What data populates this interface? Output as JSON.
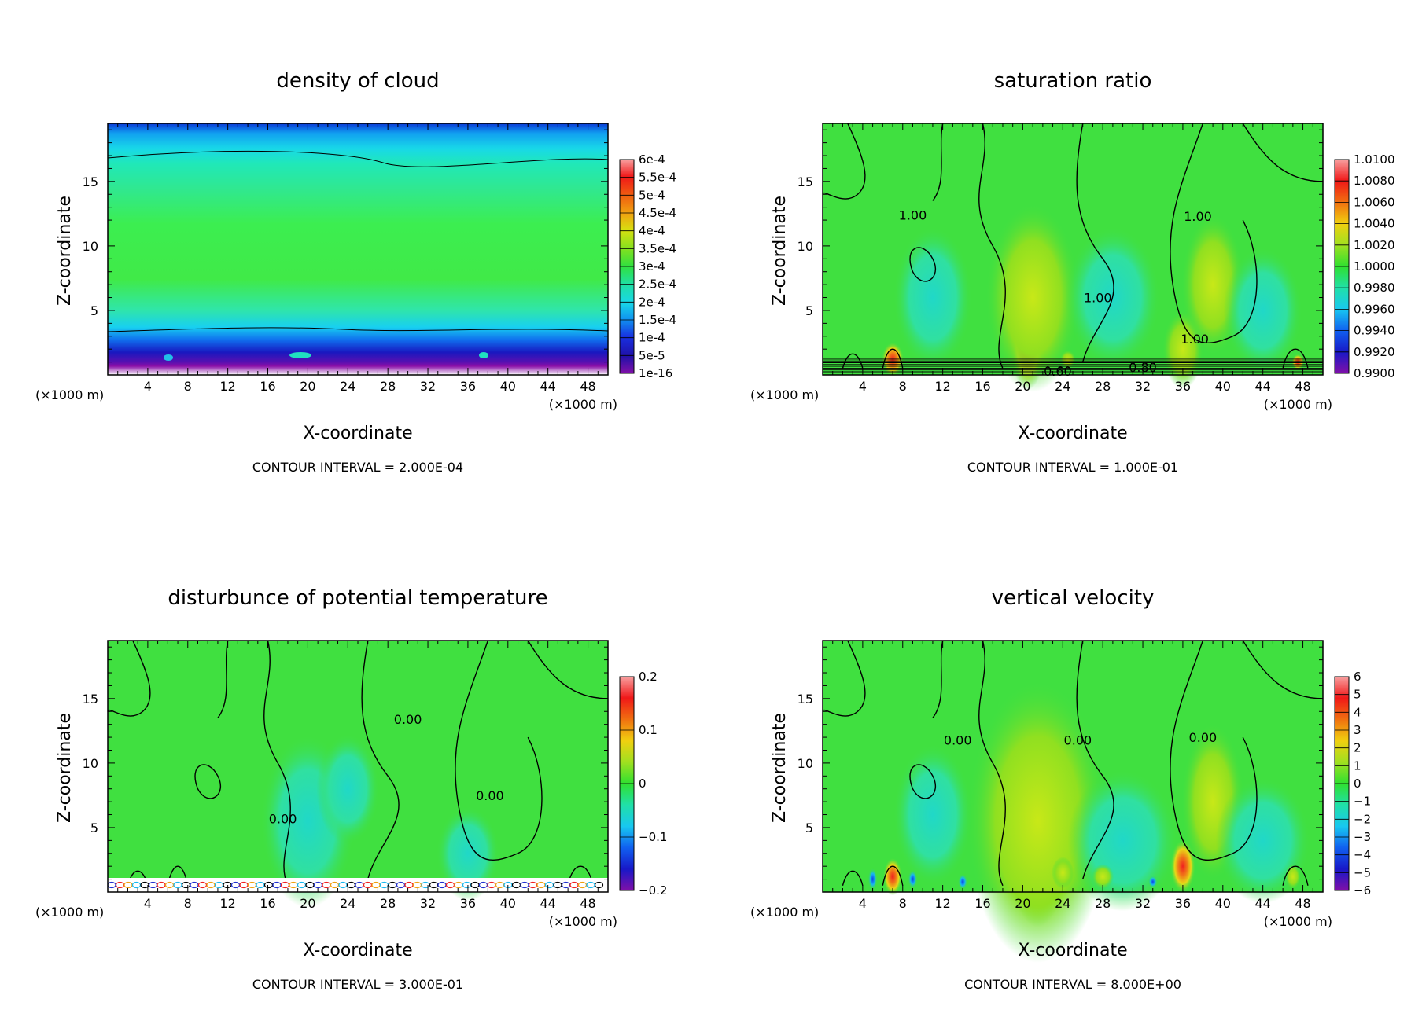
{
  "chart_data": [
    {
      "type": "heatmap",
      "title": "density of cloud",
      "xlabel": "X-coordinate",
      "ylabel": "Z-coordinate",
      "x_unit_left": "(×1000 m)",
      "x_unit_right": "(×1000 m)",
      "xlim": [
        0,
        50
      ],
      "ylim": [
        0,
        19.5
      ],
      "x_ticks": [
        4,
        8,
        12,
        16,
        20,
        24,
        28,
        32,
        36,
        40,
        44,
        48
      ],
      "y_ticks": [
        5,
        10,
        15
      ],
      "colorbar_labels": [
        "6e-4",
        "5.5e-4",
        "5e-4",
        "4.5e-4",
        "4e-4",
        "3.5e-4",
        "3e-4",
        "2.5e-4",
        "2e-4",
        "1.5e-4",
        "1e-4",
        "5e-5",
        "1e-16"
      ],
      "contour_labels": [],
      "footer": "CONTOUR INTERVAL = 2.000E-04"
    },
    {
      "type": "heatmap",
      "title": "saturation ratio",
      "xlabel": "X-coordinate",
      "ylabel": "Z-coordinate",
      "x_unit_left": "(×1000 m)",
      "x_unit_right": "(×1000 m)",
      "xlim": [
        0,
        50
      ],
      "ylim": [
        0,
        19.5
      ],
      "x_ticks": [
        4,
        8,
        12,
        16,
        20,
        24,
        28,
        32,
        36,
        40,
        44,
        48
      ],
      "y_ticks": [
        5,
        10,
        15
      ],
      "colorbar_labels": [
        "1.0100",
        "1.0080",
        "1.0060",
        "1.0040",
        "1.0020",
        "1.0000",
        "0.9980",
        "0.9960",
        "0.9940",
        "0.9920",
        "0.9900"
      ],
      "contour_labels": [
        {
          "text": "1.00",
          "x": 9,
          "z": 12.4
        },
        {
          "text": "1.00",
          "x": 37.5,
          "z": 12.3
        },
        {
          "text": "1.00",
          "x": 27.5,
          "z": 6.0
        },
        {
          "text": "1.00",
          "x": 37.2,
          "z": 2.8
        },
        {
          "text": "0.60",
          "x": 23.5,
          "z": 0.3
        },
        {
          "text": "0.80",
          "x": 32,
          "z": 0.6
        }
      ],
      "footer": "CONTOUR INTERVAL = 1.000E-01"
    },
    {
      "type": "heatmap",
      "title": "disturbunce of potential temperature",
      "xlabel": "X-coordinate",
      "ylabel": "Z-coordinate",
      "x_unit_left": "(×1000 m)",
      "x_unit_right": "(×1000 m)",
      "xlim": [
        0,
        50
      ],
      "ylim": [
        0,
        19.5
      ],
      "x_ticks": [
        4,
        8,
        12,
        16,
        20,
        24,
        28,
        32,
        36,
        40,
        44,
        48
      ],
      "y_ticks": [
        5,
        10,
        15
      ],
      "colorbar_labels": [
        "0.2",
        "0.1",
        "0",
        "−0.1",
        "−0.2"
      ],
      "contour_labels": [
        {
          "text": "0.00",
          "x": 30,
          "z": 13.4
        },
        {
          "text": "0.00",
          "x": 38.2,
          "z": 7.5
        },
        {
          "text": "0.00",
          "x": 17.5,
          "z": 5.7
        }
      ],
      "footer": "CONTOUR INTERVAL = 3.000E-01"
    },
    {
      "type": "heatmap",
      "title": "vertical velocity",
      "xlabel": "X-coordinate",
      "ylabel": "Z-coordinate",
      "x_unit_left": "(×1000 m)",
      "x_unit_right": "(×1000 m)",
      "xlim": [
        0,
        50
      ],
      "ylim": [
        0,
        19.5
      ],
      "x_ticks": [
        4,
        8,
        12,
        16,
        20,
        24,
        28,
        32,
        36,
        40,
        44,
        48
      ],
      "y_ticks": [
        5,
        10,
        15
      ],
      "colorbar_labels": [
        "6",
        "5",
        "4",
        "3",
        "2",
        "1",
        "0",
        "−1",
        "−2",
        "−3",
        "−4",
        "−5",
        "−6"
      ],
      "contour_labels": [
        {
          "text": "0.00",
          "x": 13.5,
          "z": 11.8
        },
        {
          "text": "0.00",
          "x": 25.5,
          "z": 11.8
        },
        {
          "text": "0.00",
          "x": 38,
          "z": 12.0
        }
      ],
      "footer": "CONTOUR INTERVAL = 8.000E+00"
    }
  ]
}
